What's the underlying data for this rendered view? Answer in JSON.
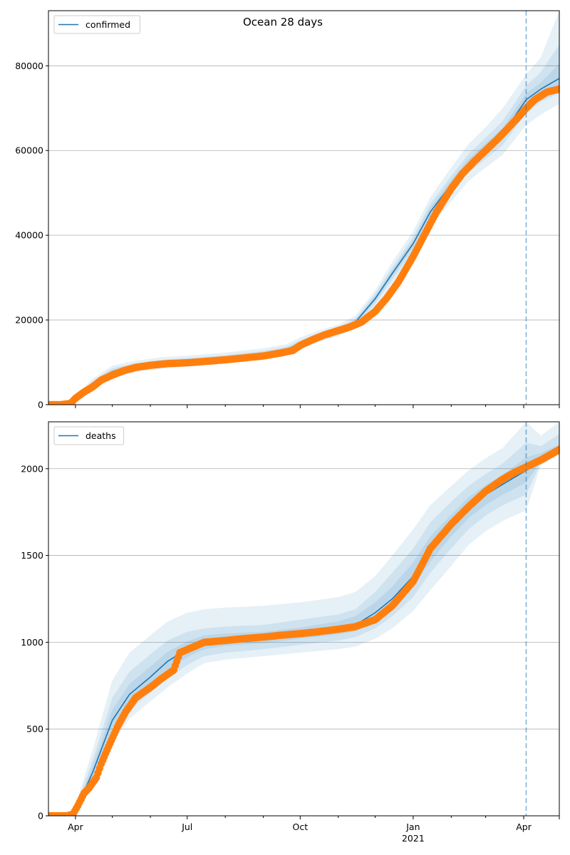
{
  "figure": {
    "title": "Ocean 28 days"
  },
  "chart_data": [
    {
      "type": "line",
      "panel": "top",
      "legend": {
        "label": "confirmed",
        "placement": "top-left"
      },
      "title": "Ocean 28 days",
      "grid": "y",
      "xlim": [
        "2020-03-10",
        "2021-04-30"
      ],
      "ylim": [
        0,
        93000
      ],
      "yticks": [
        0,
        20000,
        40000,
        60000,
        80000
      ],
      "forecast_start": "2021-04-03",
      "model_line": {
        "x": [
          "2020-03-10",
          "2020-03-25",
          "2020-04-01",
          "2020-04-15",
          "2020-05-01",
          "2020-05-20",
          "2020-06-10",
          "2020-07-01",
          "2020-08-01",
          "2020-09-01",
          "2020-09-20",
          "2020-10-01",
          "2020-10-15",
          "2020-11-01",
          "2020-11-15",
          "2020-12-01",
          "2020-12-15",
          "2021-01-01",
          "2021-01-15",
          "2021-02-01",
          "2021-02-15",
          "2021-03-01",
          "2021-03-15",
          "2021-04-03",
          "2021-04-15",
          "2021-04-30"
        ],
        "y": [
          0,
          0,
          1500,
          5000,
          7800,
          9000,
          9800,
          10200,
          11000,
          12000,
          13000,
          14500,
          16000,
          17500,
          19500,
          25000,
          31000,
          38000,
          45500,
          52000,
          57000,
          60500,
          64000,
          72000,
          74500,
          77000
        ]
      },
      "observed": {
        "x": [
          "2020-03-10",
          "2020-03-20",
          "2020-03-28",
          "2020-04-01",
          "2020-04-08",
          "2020-04-15",
          "2020-04-22",
          "2020-05-01",
          "2020-05-10",
          "2020-05-20",
          "2020-06-01",
          "2020-06-15",
          "2020-07-01",
          "2020-07-15",
          "2020-08-01",
          "2020-08-15",
          "2020-09-01",
          "2020-09-15",
          "2020-09-25",
          "2020-10-01",
          "2020-10-10",
          "2020-10-20",
          "2020-11-01",
          "2020-11-10",
          "2020-11-20",
          "2020-12-01",
          "2020-12-10",
          "2020-12-20",
          "2021-01-01",
          "2021-01-10",
          "2021-01-20",
          "2021-02-01",
          "2021-02-10",
          "2021-02-20",
          "2021-03-01",
          "2021-03-10",
          "2021-03-20",
          "2021-03-28",
          "2021-04-03",
          "2021-04-10",
          "2021-04-20",
          "2021-04-30"
        ],
        "y": [
          0,
          0,
          300,
          1500,
          3000,
          4200,
          5800,
          7000,
          8000,
          8800,
          9300,
          9700,
          9900,
          10200,
          10600,
          11000,
          11500,
          12200,
          12800,
          14000,
          15200,
          16400,
          17500,
          18300,
          19500,
          22000,
          25000,
          29000,
          35000,
          40000,
          45500,
          51000,
          54500,
          57500,
          60000,
          62500,
          65500,
          68000,
          70000,
          72000,
          73800,
          74500
        ]
      },
      "bands": {
        "x": [
          "2020-03-10",
          "2020-03-25",
          "2020-04-01",
          "2020-04-15",
          "2020-05-01",
          "2020-05-20",
          "2020-06-10",
          "2020-07-01",
          "2020-08-01",
          "2020-09-01",
          "2020-09-20",
          "2020-10-01",
          "2020-10-15",
          "2020-11-01",
          "2020-11-15",
          "2020-12-01",
          "2020-12-15",
          "2021-01-01",
          "2021-01-15",
          "2021-02-01",
          "2021-02-15",
          "2021-03-01",
          "2021-03-15",
          "2021-04-03",
          "2021-04-15",
          "2021-04-30"
        ],
        "lower": [
          [
            0,
            0,
            1000,
            4000,
            6500,
            7700,
            8500,
            9000,
            9800,
            10800,
            11800,
            13200,
            14700,
            16200,
            18200,
            23000,
            28500,
            35000,
            42000,
            48000,
            52800,
            56000,
            59000,
            66000,
            68500,
            71000
          ],
          [
            0,
            0,
            1200,
            4400,
            7000,
            8200,
            9000,
            9500,
            10300,
            11300,
            12300,
            13700,
            15200,
            16700,
            18700,
            23800,
            29500,
            36300,
            43500,
            50000,
            54800,
            58000,
            61300,
            68800,
            71500,
            73500
          ],
          [
            0,
            0,
            1350,
            4700,
            7400,
            8600,
            9400,
            9850,
            10650,
            11650,
            12650,
            14100,
            15600,
            17100,
            19100,
            24400,
            30300,
            37200,
            44500,
            51000,
            56000,
            59300,
            62700,
            70500,
            73000,
            75200
          ]
        ],
        "upper": [
          [
            0,
            0,
            2100,
            6100,
            9200,
            10400,
            11200,
            11600,
            12300,
            13300,
            14300,
            15900,
            17400,
            18900,
            21000,
            27000,
            33700,
            41000,
            49000,
            56000,
            61500,
            65500,
            70000,
            78000,
            82000,
            93000
          ],
          [
            0,
            0,
            1850,
            5600,
            8600,
            9800,
            10600,
            11000,
            11700,
            12700,
            13700,
            15200,
            16800,
            18300,
            20300,
            26200,
            32400,
            39600,
            47500,
            54000,
            59200,
            63000,
            67000,
            75300,
            78500,
            85000
          ],
          [
            0,
            0,
            1650,
            5300,
            8200,
            9400,
            10200,
            10550,
            11350,
            12350,
            13350,
            14900,
            16400,
            17900,
            19900,
            25600,
            31700,
            38800,
            46500,
            53000,
            58000,
            61700,
            65300,
            73500,
            76000,
            80500
          ]
        ]
      }
    },
    {
      "type": "line",
      "panel": "bottom",
      "legend": {
        "label": "deaths",
        "placement": "top-left"
      },
      "grid": "y",
      "xlim": [
        "2020-03-10",
        "2021-04-30"
      ],
      "ylim": [
        0,
        2270
      ],
      "yticks": [
        0,
        500,
        1000,
        1500,
        2000
      ],
      "forecast_start": "2021-04-03",
      "x_ticks": [
        {
          "date": "2020-04-01",
          "label": "Apr"
        },
        {
          "date": "2020-07-01",
          "label": "Jul"
        },
        {
          "date": "2020-10-01",
          "label": "Oct"
        },
        {
          "date": "2021-01-01",
          "label": "Jan",
          "sublabel": "2021"
        },
        {
          "date": "2021-04-01",
          "label": "Apr"
        }
      ],
      "model_line": {
        "x": [
          "2020-03-10",
          "2020-03-25",
          "2020-04-01",
          "2020-04-15",
          "2020-05-01",
          "2020-05-15",
          "2020-06-01",
          "2020-06-15",
          "2020-07-01",
          "2020-07-15",
          "2020-08-01",
          "2020-09-01",
          "2020-10-01",
          "2020-11-01",
          "2020-11-15",
          "2020-12-01",
          "2020-12-15",
          "2021-01-01",
          "2021-01-15",
          "2021-02-01",
          "2021-02-15",
          "2021-03-01",
          "2021-03-15",
          "2021-04-03",
          "2021-04-15",
          "2021-04-30"
        ],
        "y": [
          0,
          0,
          30,
          250,
          550,
          700,
          800,
          890,
          960,
          1000,
          1010,
          1025,
          1050,
          1080,
          1100,
          1170,
          1250,
          1380,
          1530,
          1670,
          1780,
          1850,
          1910,
          1990,
          2060,
          2110
        ]
      },
      "observed": {
        "x": [
          "2020-03-10",
          "2020-03-25",
          "2020-03-30",
          "2020-04-03",
          "2020-04-08",
          "2020-04-12",
          "2020-04-18",
          "2020-04-22",
          "2020-04-28",
          "2020-05-05",
          "2020-05-12",
          "2020-05-20",
          "2020-06-01",
          "2020-06-10",
          "2020-06-20",
          "2020-06-25",
          "2020-07-05",
          "2020-07-15",
          "2020-08-01",
          "2020-08-15",
          "2020-09-01",
          "2020-09-15",
          "2020-10-01",
          "2020-10-15",
          "2020-11-01",
          "2020-11-15",
          "2020-12-01",
          "2020-12-15",
          "2021-01-01",
          "2021-01-15",
          "2021-02-01",
          "2021-02-15",
          "2021-03-01",
          "2021-03-15",
          "2021-03-25",
          "2021-04-03",
          "2021-04-15",
          "2021-04-25",
          "2021-04-30"
        ],
        "y": [
          0,
          0,
          10,
          60,
          130,
          160,
          220,
          300,
          400,
          510,
          600,
          680,
          740,
          790,
          840,
          940,
          970,
          1000,
          1010,
          1020,
          1030,
          1040,
          1050,
          1060,
          1075,
          1090,
          1130,
          1210,
          1350,
          1540,
          1680,
          1780,
          1870,
          1940,
          1980,
          2010,
          2050,
          2090,
          2110
        ]
      },
      "bands": {
        "x": [
          "2020-03-10",
          "2020-03-25",
          "2020-04-01",
          "2020-04-15",
          "2020-05-01",
          "2020-05-15",
          "2020-06-01",
          "2020-06-15",
          "2020-07-01",
          "2020-07-15",
          "2020-08-01",
          "2020-09-01",
          "2020-10-01",
          "2020-11-01",
          "2020-11-15",
          "2020-12-01",
          "2020-12-15",
          "2021-01-01",
          "2021-01-15",
          "2021-02-01",
          "2021-02-15",
          "2021-03-01",
          "2021-03-15",
          "2021-04-03",
          "2021-04-15",
          "2021-04-30"
        ],
        "lower": [
          [
            0,
            0,
            5,
            170,
            420,
            560,
            660,
            740,
            820,
            880,
            900,
            920,
            940,
            960,
            975,
            1020,
            1080,
            1180,
            1300,
            1440,
            1560,
            1640,
            1700,
            1760,
            2020,
            2080
          ],
          [
            0,
            0,
            12,
            200,
            470,
            610,
            710,
            790,
            870,
            920,
            940,
            960,
            985,
            1010,
            1030,
            1080,
            1150,
            1260,
            1400,
            1540,
            1650,
            1730,
            1790,
            1850,
            2035,
            2090
          ],
          [
            0,
            0,
            20,
            225,
            510,
            655,
            755,
            840,
            915,
            960,
            980,
            995,
            1020,
            1045,
            1065,
            1130,
            1200,
            1320,
            1465,
            1610,
            1715,
            1790,
            1850,
            1920,
            2045,
            2100
          ]
        ],
        "upper": [
          [
            0,
            0,
            60,
            380,
            780,
            940,
            1040,
            1120,
            1170,
            1190,
            1200,
            1210,
            1230,
            1260,
            1290,
            1380,
            1500,
            1650,
            1790,
            1900,
            1990,
            2060,
            2120,
            2270,
            2190,
            2270
          ],
          [
            0,
            0,
            45,
            320,
            680,
            830,
            930,
            1010,
            1060,
            1080,
            1090,
            1100,
            1130,
            1160,
            1190,
            1290,
            1400,
            1540,
            1690,
            1810,
            1900,
            1970,
            2030,
            2150,
            2130,
            2200
          ],
          [
            0,
            0,
            38,
            285,
            610,
            760,
            860,
            945,
            1005,
            1040,
            1050,
            1060,
            1085,
            1120,
            1150,
            1230,
            1320,
            1460,
            1610,
            1735,
            1835,
            1905,
            1965,
            2065,
            2090,
            2140
          ]
        ]
      }
    }
  ],
  "colors": {
    "model_line": "#1f77b4",
    "observed": "#ff7f0e",
    "band": "#1f77b4",
    "grid": "#b0b0b0",
    "forecast_line": "#1f77b4"
  }
}
